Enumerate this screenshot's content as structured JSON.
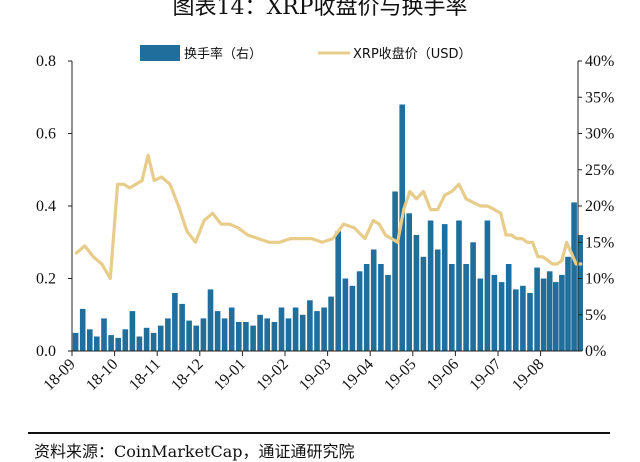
{
  "figure_title": "图表14：XRP收盘价与换手率",
  "source_note": "资料来源：CoinMarketCap，通证通研究院",
  "colors": {
    "turnover": "#1f6e9c",
    "price": "#e8cc8a",
    "axis": "#222222"
  },
  "chart_data": {
    "type": "bar+line",
    "title": "",
    "xlabel": "",
    "ylabel_left": "",
    "ylabel_right": "",
    "left_axis": {
      "min": 0,
      "max": 0.8,
      "ticks": [
        "0.0",
        "0.2",
        "0.4",
        "0.6",
        "0.8"
      ]
    },
    "right_axis": {
      "min": 0,
      "max": 40,
      "unit": "%",
      "ticks": [
        "0%",
        "5%",
        "10%",
        "15%",
        "20%",
        "25%",
        "30%",
        "35%",
        "40%"
      ]
    },
    "x_tick_labels": [
      "18-09",
      "18-10",
      "18-11",
      "18-12",
      "19-01",
      "19-02",
      "19-03",
      "19-04",
      "19-05",
      "19-06",
      "19-07",
      "19-08"
    ],
    "legend": {
      "position": "top",
      "entries": [
        "换手率（右）",
        "XRP收盘价（USD）"
      ]
    },
    "series": [
      {
        "name": "XRP收盘价（USD）",
        "type": "line",
        "axis": "left",
        "unit": "USD",
        "points": [
          [
            "18-09",
            0.27
          ],
          [
            "18-09",
            0.29
          ],
          [
            "18-09",
            0.26
          ],
          [
            "18-09",
            0.24
          ],
          [
            "18-09",
            0.2
          ],
          [
            "18-10",
            0.46
          ],
          [
            "18-10",
            0.46
          ],
          [
            "18-10",
            0.45
          ],
          [
            "18-10",
            0.46
          ],
          [
            "18-10",
            0.47
          ],
          [
            "18-10",
            0.54
          ],
          [
            "18-10",
            0.47
          ],
          [
            "18-11",
            0.48
          ],
          [
            "18-11",
            0.46
          ],
          [
            "18-11",
            0.4
          ],
          [
            "18-11",
            0.33
          ],
          [
            "18-11",
            0.3
          ],
          [
            "18-12",
            0.36
          ],
          [
            "18-12",
            0.38
          ],
          [
            "18-12",
            0.35
          ],
          [
            "18-12",
            0.35
          ],
          [
            "18-12",
            0.34
          ],
          [
            "19-01",
            0.32
          ],
          [
            "19-01",
            0.31
          ],
          [
            "19-01",
            0.3
          ],
          [
            "19-01",
            0.3
          ],
          [
            "19-02",
            0.31
          ],
          [
            "19-02",
            0.31
          ],
          [
            "19-02",
            0.31
          ],
          [
            "19-02",
            0.3
          ],
          [
            "19-03",
            0.31
          ],
          [
            "19-03",
            0.35
          ],
          [
            "19-03",
            0.34
          ],
          [
            "19-03",
            0.31
          ],
          [
            "19-04",
            0.36
          ],
          [
            "19-04",
            0.35
          ],
          [
            "19-04",
            0.32
          ],
          [
            "19-04",
            0.31
          ],
          [
            "19-04",
            0.3
          ],
          [
            "19-04",
            0.39
          ],
          [
            "19-04",
            0.44
          ],
          [
            "19-05",
            0.42
          ],
          [
            "19-05",
            0.44
          ],
          [
            "19-05",
            0.39
          ],
          [
            "19-05",
            0.39
          ],
          [
            "19-05",
            0.43
          ],
          [
            "19-05",
            0.44
          ],
          [
            "19-06",
            0.46
          ],
          [
            "19-06",
            0.42
          ],
          [
            "19-06",
            0.41
          ],
          [
            "19-06",
            0.4
          ],
          [
            "19-06",
            0.4
          ],
          [
            "19-06",
            0.39
          ],
          [
            "19-07",
            0.38
          ],
          [
            "19-07",
            0.32
          ],
          [
            "19-07",
            0.32
          ],
          [
            "19-07",
            0.31
          ],
          [
            "19-07",
            0.31
          ],
          [
            "19-07",
            0.3
          ],
          [
            "19-07",
            0.3
          ],
          [
            "19-07",
            0.26
          ],
          [
            "19-08",
            0.26
          ],
          [
            "19-08",
            0.25
          ],
          [
            "19-08",
            0.24
          ],
          [
            "19-08",
            0.24
          ],
          [
            "19-08",
            0.25
          ],
          [
            "19-08",
            0.3
          ],
          [
            "19-08",
            0.27
          ],
          [
            "19-08",
            0.24
          ],
          [
            "19-08",
            0.24
          ]
        ]
      },
      {
        "name": "换手率（右）",
        "type": "bar",
        "axis": "right",
        "unit": "%",
        "points": [
          [
            "18-09",
            2.5
          ],
          [
            "18-09",
            5.8
          ],
          [
            "18-09",
            3.0
          ],
          [
            "18-09",
            2.0
          ],
          [
            "18-09",
            4.5
          ],
          [
            "18-09",
            2.2
          ],
          [
            "18-10",
            1.8
          ],
          [
            "18-10",
            3.0
          ],
          [
            "18-10",
            5.5
          ],
          [
            "18-10",
            2.0
          ],
          [
            "18-10",
            3.2
          ],
          [
            "18-10",
            2.5
          ],
          [
            "18-11",
            3.5
          ],
          [
            "18-11",
            4.5
          ],
          [
            "18-11",
            8.0
          ],
          [
            "18-11",
            6.5
          ],
          [
            "18-11",
            4.2
          ],
          [
            "18-11",
            3.5
          ],
          [
            "18-12",
            4.5
          ],
          [
            "18-12",
            8.5
          ],
          [
            "18-12",
            5.5
          ],
          [
            "18-12",
            4.5
          ],
          [
            "18-12",
            6.0
          ],
          [
            "18-12",
            4.0
          ],
          [
            "19-01",
            4.0
          ],
          [
            "19-01",
            3.5
          ],
          [
            "19-01",
            5.0
          ],
          [
            "19-01",
            4.5
          ],
          [
            "19-01",
            4.0
          ],
          [
            "19-01",
            6.0
          ],
          [
            "19-02",
            4.5
          ],
          [
            "19-02",
            6.0
          ],
          [
            "19-02",
            5.0
          ],
          [
            "19-02",
            7.0
          ],
          [
            "19-02",
            5.5
          ],
          [
            "19-02",
            6.0
          ],
          [
            "19-03",
            7.5
          ],
          [
            "19-03",
            16.5
          ],
          [
            "19-03",
            10.0
          ],
          [
            "19-03",
            9.0
          ],
          [
            "19-03",
            11.0
          ],
          [
            "19-03",
            12.0
          ],
          [
            "19-04",
            14.0
          ],
          [
            "19-04",
            12.0
          ],
          [
            "19-04",
            10.5
          ],
          [
            "19-04",
            22.0
          ],
          [
            "19-04",
            34.0
          ],
          [
            "19-04",
            19.0
          ],
          [
            "19-05",
            16.0
          ],
          [
            "19-05",
            13.0
          ],
          [
            "19-05",
            18.0
          ],
          [
            "19-05",
            14.0
          ],
          [
            "19-05",
            17.5
          ],
          [
            "19-05",
            12.0
          ],
          [
            "19-06",
            18.0
          ],
          [
            "19-06",
            12.0
          ],
          [
            "19-06",
            15.0
          ],
          [
            "19-06",
            10.0
          ],
          [
            "19-06",
            18.0
          ],
          [
            "19-06",
            10.5
          ],
          [
            "19-07",
            9.5
          ],
          [
            "19-07",
            12.0
          ],
          [
            "19-07",
            8.5
          ],
          [
            "19-07",
            9.0
          ],
          [
            "19-07",
            8.0
          ],
          [
            "19-07",
            11.5
          ],
          [
            "19-08",
            10.0
          ],
          [
            "19-08",
            11.0
          ],
          [
            "19-08",
            9.5
          ],
          [
            "19-08",
            10.5
          ],
          [
            "19-08",
            13.0
          ],
          [
            "19-08",
            20.5
          ],
          [
            "19-08",
            16.0
          ]
        ]
      }
    ]
  }
}
